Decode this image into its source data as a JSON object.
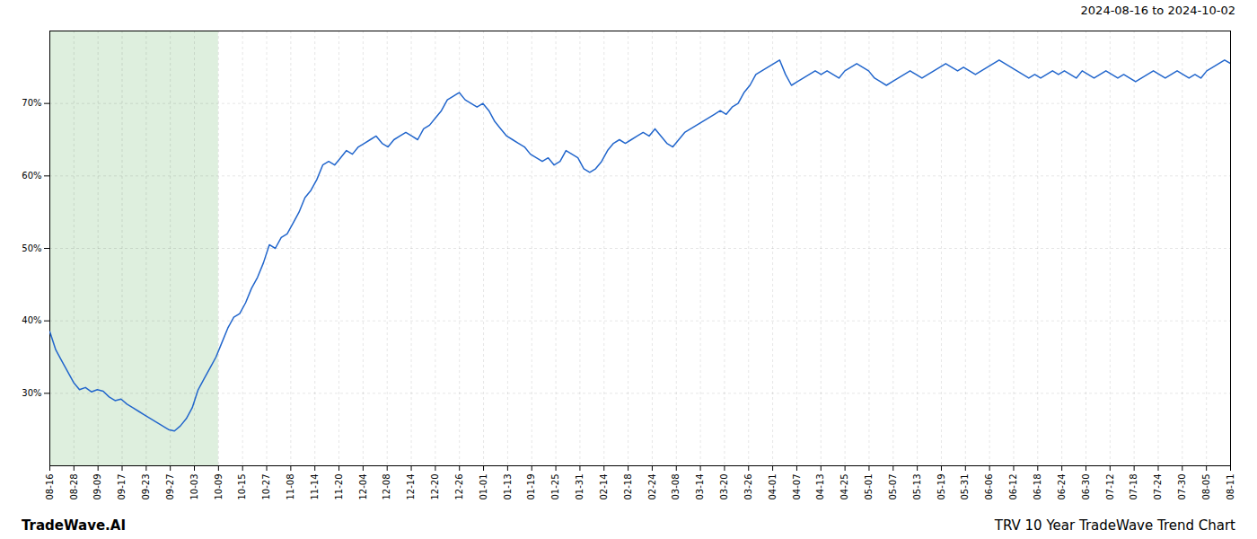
{
  "chart_data": {
    "type": "line",
    "title": "TRV 10 Year TradeWave Trend Chart",
    "subtitle": "2024-08-16 to 2024-10-02",
    "caption": "TradeWave.AI",
    "color": "#2266cc",
    "grid": true,
    "x": [
      0,
      1,
      2,
      3,
      4,
      5,
      6,
      7,
      8,
      9,
      10,
      11,
      12,
      13,
      14,
      15,
      16,
      17,
      18,
      19,
      20,
      21,
      22,
      23,
      24,
      25,
      26,
      27,
      28,
      29,
      30,
      31,
      32,
      33,
      34,
      35,
      36,
      37,
      38,
      39,
      40,
      41,
      42,
      43,
      44,
      45,
      46,
      47,
      48,
      49,
      50,
      51,
      52,
      53,
      54,
      55,
      56,
      57,
      58,
      59,
      60,
      61,
      62,
      63,
      64,
      65,
      66,
      67,
      68,
      69,
      70,
      71,
      72,
      73,
      74,
      75,
      76,
      77,
      78,
      79,
      80,
      81,
      82,
      83,
      84,
      85,
      86,
      87,
      88,
      89,
      90,
      91,
      92,
      93,
      94,
      95,
      96,
      97,
      98,
      99,
      100,
      101,
      102,
      103,
      104,
      105,
      106,
      107,
      108,
      109,
      110,
      111,
      112,
      113,
      114,
      115,
      116,
      117,
      118,
      119,
      120,
      121,
      122,
      123,
      124,
      125,
      126,
      127,
      128,
      129,
      130,
      131,
      132,
      133,
      134,
      135,
      136,
      137,
      138,
      139,
      140,
      141,
      142,
      143,
      144,
      145,
      146,
      147,
      148,
      149,
      150,
      151,
      152,
      153,
      154,
      155,
      156,
      157,
      158,
      159,
      160,
      161,
      162,
      163,
      164,
      165,
      166,
      167,
      168,
      169,
      170,
      171,
      172,
      173,
      174,
      175,
      176,
      177,
      178,
      179,
      180,
      181,
      182,
      183,
      184,
      185,
      186,
      187,
      188,
      189,
      190,
      191,
      192,
      193,
      194,
      195,
      196,
      197,
      198,
      199
    ],
    "values": [
      38.5,
      36.0,
      34.5,
      33.0,
      31.5,
      30.5,
      30.8,
      30.2,
      30.5,
      30.3,
      29.5,
      29.0,
      29.2,
      28.5,
      28.0,
      27.5,
      27.0,
      26.5,
      26.0,
      25.5,
      25.0,
      24.8,
      25.5,
      26.5,
      28.0,
      30.5,
      32.0,
      33.5,
      35.0,
      37.0,
      39.0,
      40.5,
      41.0,
      42.5,
      44.5,
      46.0,
      48.0,
      50.5,
      50.0,
      51.5,
      52.0,
      53.5,
      55.0,
      57.0,
      58.0,
      59.5,
      61.5,
      62.0,
      61.5,
      62.5,
      63.5,
      63.0,
      64.0,
      64.5,
      65.0,
      65.5,
      64.5,
      64.0,
      65.0,
      65.5,
      66.0,
      65.5,
      65.0,
      66.5,
      67.0,
      68.0,
      69.0,
      70.5,
      71.0,
      71.5,
      70.5,
      70.0,
      69.5,
      70.0,
      69.0,
      67.5,
      66.5,
      65.5,
      65.0,
      64.5,
      64.0,
      63.0,
      62.5,
      62.0,
      62.5,
      61.5,
      62.0,
      63.5,
      63.0,
      62.5,
      61.0,
      60.5,
      61.0,
      62.0,
      63.5,
      64.5,
      65.0,
      64.5,
      65.0,
      65.5,
      66.0,
      65.5,
      66.5,
      65.5,
      64.5,
      64.0,
      65.0,
      66.0,
      66.5,
      67.0,
      67.5,
      68.0,
      68.5,
      69.0,
      68.5,
      69.5,
      70.0,
      71.5,
      72.5,
      74.0,
      74.5,
      75.0,
      75.5,
      76.0,
      74.0,
      72.5,
      73.0,
      73.5,
      74.0,
      74.5,
      74.0,
      74.5,
      74.0,
      73.5,
      74.5,
      75.0,
      75.5,
      75.0,
      74.5,
      73.5,
      73.0,
      72.5,
      73.0,
      73.5,
      74.0,
      74.5,
      74.0,
      73.5,
      74.0,
      74.5,
      75.0,
      75.5,
      75.0,
      74.5,
      75.0,
      74.5,
      74.0,
      74.5,
      75.0,
      75.5,
      76.0,
      75.5,
      75.0,
      74.5,
      74.0,
      73.5,
      74.0,
      73.5,
      74.0,
      74.5,
      74.0,
      74.5,
      74.0,
      73.5,
      74.5,
      74.0,
      73.5,
      74.0,
      74.5,
      74.0,
      73.5,
      74.0,
      73.5,
      73.0,
      73.5,
      74.0,
      74.5,
      74.0,
      73.5,
      74.0,
      74.5,
      74.0,
      73.5,
      74.0,
      73.5,
      74.5,
      75.0,
      75.5,
      76.0,
      75.5
    ],
    "xlim": [
      0,
      199
    ],
    "xticks": [
      {
        "value": 0,
        "label": "08-16"
      },
      {
        "value": 4.0612244898,
        "label": "08-28"
      },
      {
        "value": 8.1224489796,
        "label": "09-09"
      },
      {
        "value": 12.1836734694,
        "label": "09-17"
      },
      {
        "value": 16.2448979592,
        "label": "09-23"
      },
      {
        "value": 20.306122449,
        "label": "09-27"
      },
      {
        "value": 24.3673469388,
        "label": "10-03"
      },
      {
        "value": 28.4285714286,
        "label": "10-09"
      },
      {
        "value": 32.4897959184,
        "label": "10-15"
      },
      {
        "value": 36.5510204082,
        "label": "10-27"
      },
      {
        "value": 40.612244898,
        "label": "11-08"
      },
      {
        "value": 44.6734693878,
        "label": "11-14"
      },
      {
        "value": 48.7346938776,
        "label": "11-20"
      },
      {
        "value": 52.7959183673,
        "label": "12-04"
      },
      {
        "value": 56.8571428571,
        "label": "12-08"
      },
      {
        "value": 60.9183673469,
        "label": "12-14"
      },
      {
        "value": 64.9795918367,
        "label": "12-20"
      },
      {
        "value": 69.0408163265,
        "label": "12-26"
      },
      {
        "value": 73.1020408163,
        "label": "01-01"
      },
      {
        "value": 77.1632653061,
        "label": "01-13"
      },
      {
        "value": 81.2244897959,
        "label": "01-19"
      },
      {
        "value": 85.2857142857,
        "label": "01-25"
      },
      {
        "value": 89.3469387755,
        "label": "01-31"
      },
      {
        "value": 93.4081632653,
        "label": "02-14"
      },
      {
        "value": 97.4693877551,
        "label": "02-18"
      },
      {
        "value": 101.5306122449,
        "label": "02-24"
      },
      {
        "value": 105.5918367347,
        "label": "03-08"
      },
      {
        "value": 109.6530612245,
        "label": "03-14"
      },
      {
        "value": 113.7142857143,
        "label": "03-20"
      },
      {
        "value": 117.7755102041,
        "label": "03-26"
      },
      {
        "value": 121.8367346939,
        "label": "04-01"
      },
      {
        "value": 125.8979591837,
        "label": "04-07"
      },
      {
        "value": 129.9591836735,
        "label": "04-13"
      },
      {
        "value": 134.0204081633,
        "label": "04-25"
      },
      {
        "value": 138.0816326531,
        "label": "05-01"
      },
      {
        "value": 142.1428571429,
        "label": "05-07"
      },
      {
        "value": 146.2040816327,
        "label": "05-13"
      },
      {
        "value": 150.2653061224,
        "label": "05-19"
      },
      {
        "value": 154.3265306122,
        "label": "05-31"
      },
      {
        "value": 158.387755102,
        "label": "06-06"
      },
      {
        "value": 162.4489795918,
        "label": "06-12"
      },
      {
        "value": 166.5102040816,
        "label": "06-18"
      },
      {
        "value": 170.5714285714,
        "label": "06-24"
      },
      {
        "value": 174.6326530612,
        "label": "06-30"
      },
      {
        "value": 178.693877551,
        "label": "07-12"
      },
      {
        "value": 182.7551020408,
        "label": "07-18"
      },
      {
        "value": 186.8163265306,
        "label": "07-24"
      },
      {
        "value": 190.8775510204,
        "label": "07-30"
      },
      {
        "value": 194.9387755102,
        "label": "08-05"
      },
      {
        "value": 199,
        "label": "08-11"
      }
    ],
    "ylim": [
      20,
      80
    ],
    "yticks": [
      {
        "value": 30,
        "label": "30%"
      },
      {
        "value": 40,
        "label": "40%"
      },
      {
        "value": 50,
        "label": "50%"
      },
      {
        "value": 60,
        "label": "60%"
      },
      {
        "value": 70,
        "label": "70%"
      }
    ],
    "shaded_region": {
      "x": [
        0,
        28.4285714286
      ],
      "color": "#d0e8d0"
    }
  }
}
